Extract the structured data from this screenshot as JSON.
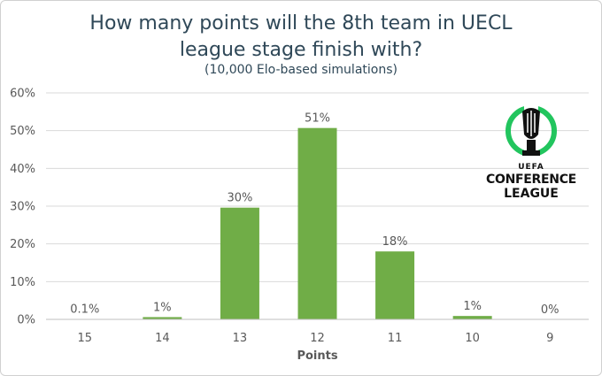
{
  "header": {
    "title_line1": "How many points will the 8th team in UECL",
    "title_line2": "league stage finish with?",
    "subtitle": "(10,000 Elo-based simulations)"
  },
  "logo": {
    "line1": "UEFA",
    "line2": "CONFERENCE",
    "line3": "LEAGUE",
    "accent_color": "#22c55e"
  },
  "chart_data": {
    "type": "bar",
    "categories": [
      "15",
      "14",
      "13",
      "12",
      "11",
      "10",
      "9"
    ],
    "values": [
      0.1,
      1,
      30,
      51,
      18,
      1,
      0
    ],
    "bar_values": [
      0.1,
      0.6,
      29.6,
      50.7,
      18.0,
      0.9,
      0.0
    ],
    "data_labels": [
      "0.1%",
      "1%",
      "30%",
      "51%",
      "18%",
      "1%",
      "0%"
    ],
    "xlabel": "Points",
    "ylabel": "",
    "ylim": [
      0,
      60
    ],
    "yticks": [
      0,
      10,
      20,
      30,
      40,
      50,
      60
    ],
    "ytick_labels": [
      "0%",
      "10%",
      "20%",
      "30%",
      "40%",
      "50%",
      "60%"
    ],
    "grid": true,
    "bar_color": "#70ad47",
    "grid_color": "#d9d9d9"
  }
}
